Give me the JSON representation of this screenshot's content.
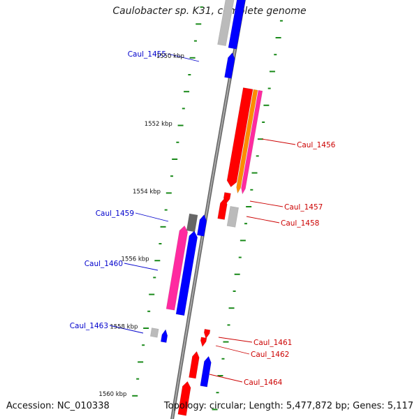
{
  "title": "Caulobacter sp. K31, complete genome",
  "accession": "Accession: NC_010338",
  "topology": "Topology: circular; Length: 5,477,872 bp; Genes: 5,117",
  "colors": {
    "backbone": "#8a8a8a",
    "tick": "#1a8a1a",
    "plus_label": "#cc0000",
    "minus_label": "#0000cc",
    "red": "#ff0000",
    "blue": "#0000ff",
    "pink": "#ff2aa0",
    "orange": "#ff8c00",
    "grey": "#bbbbbb",
    "dark_grey": "#666666"
  },
  "kbp_labels": [
    {
      "kbp": 1550,
      "text": "1550 kbp"
    },
    {
      "kbp": 1552,
      "text": "1552 kbp"
    },
    {
      "kbp": 1554,
      "text": "1554 kbp"
    },
    {
      "kbp": 1556,
      "text": "1556 kbp"
    },
    {
      "kbp": 1558,
      "text": "1558 kbp"
    },
    {
      "kbp": 1560,
      "text": "1560 kbp"
    }
  ],
  "gene_labels": [
    {
      "name": "Caul_1455",
      "strand": "minus"
    },
    {
      "name": "Caul_1456",
      "strand": "plus"
    },
    {
      "name": "Caul_1457",
      "strand": "plus"
    },
    {
      "name": "Caul_1458",
      "strand": "plus"
    },
    {
      "name": "Caul_1459",
      "strand": "minus"
    },
    {
      "name": "Caul_1460",
      "strand": "minus"
    },
    {
      "name": "Caul_1461",
      "strand": "plus"
    },
    {
      "name": "Caul_1462",
      "strand": "plus"
    },
    {
      "name": "Caul_1463",
      "strand": "minus"
    },
    {
      "name": "Caul_1464",
      "strand": "plus"
    }
  ]
}
